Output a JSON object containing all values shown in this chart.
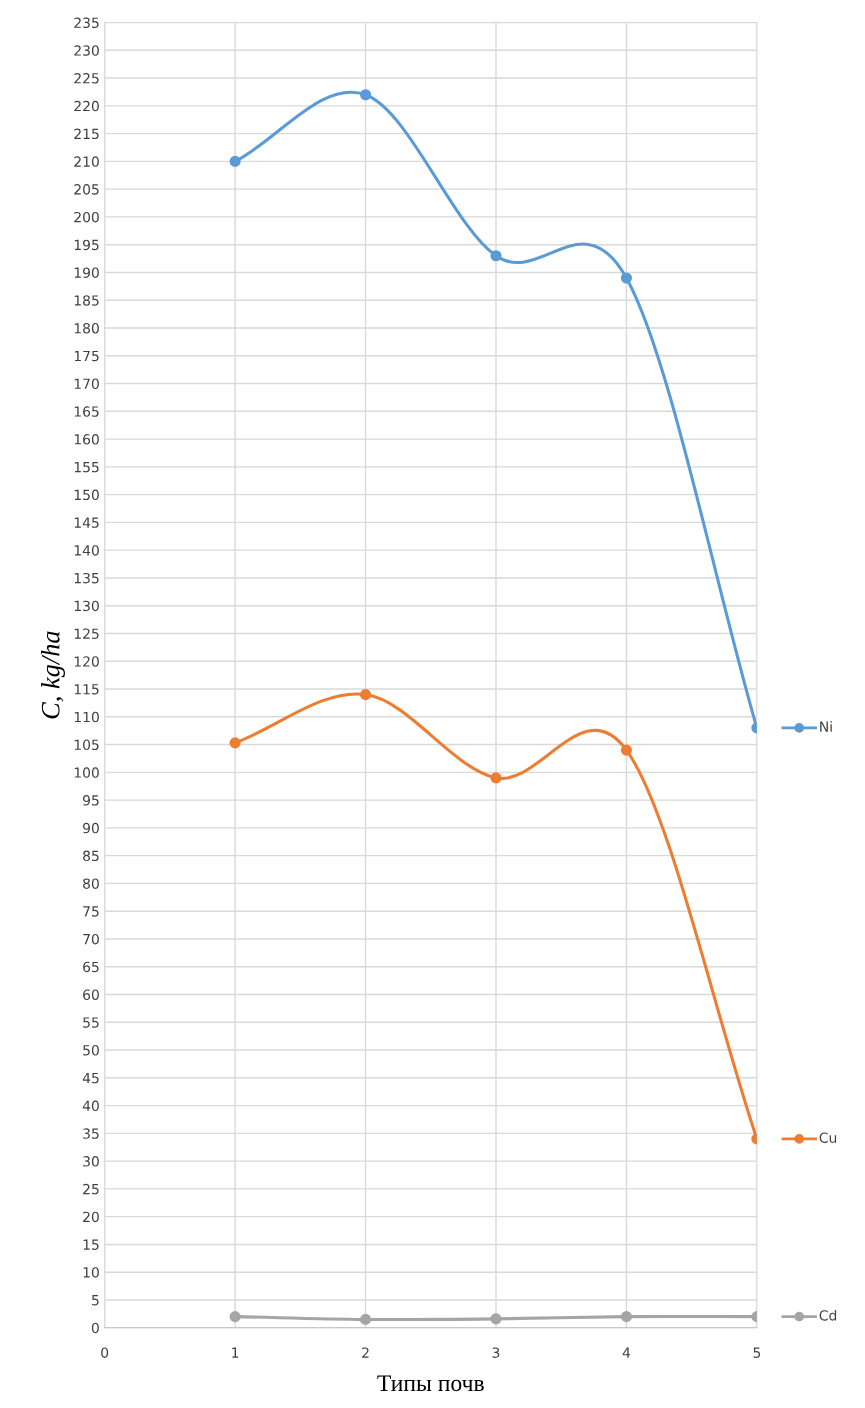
{
  "chart_data": {
    "type": "line",
    "xlabel": "Типы почв",
    "ylabel": "C, kg/ha",
    "x": [
      1,
      2,
      3,
      4,
      5
    ],
    "series": [
      {
        "name": "Ni",
        "color": "#5b9bd5",
        "values": [
          210,
          222,
          193,
          189,
          108
        ]
      },
      {
        "name": "Cu",
        "color": "#ed7d31",
        "values": [
          105.3,
          114,
          99,
          104,
          34
        ]
      },
      {
        "name": "Cd",
        "color": "#a5a5a5",
        "values": [
          2,
          1.5,
          1.6,
          2,
          2
        ]
      }
    ],
    "xlim": [
      0,
      5
    ],
    "xticks": [
      0,
      1,
      2,
      3,
      4,
      5
    ],
    "ylim": [
      0,
      235
    ],
    "yticks": [
      0,
      5,
      10,
      15,
      20,
      25,
      30,
      35,
      40,
      45,
      50,
      55,
      60,
      65,
      70,
      75,
      80,
      85,
      90,
      95,
      100,
      105,
      110,
      115,
      120,
      125,
      130,
      135,
      140,
      145,
      150,
      155,
      160,
      165,
      170,
      175,
      180,
      185,
      190,
      195,
      200,
      205,
      210,
      215,
      220,
      225,
      230,
      235
    ],
    "grid": true,
    "legend": "right",
    "marker": "circle",
    "line_style": "solid"
  }
}
